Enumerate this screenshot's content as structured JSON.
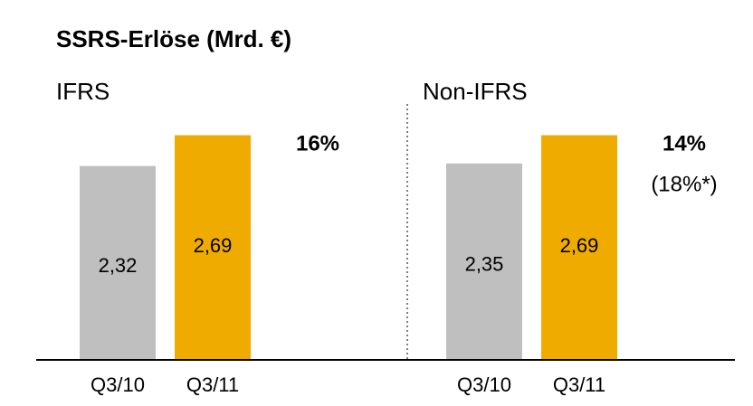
{
  "title": "SSRS-Erlöse (Mrd. €)",
  "chart_data": [
    {
      "type": "bar",
      "subtitle": "IFRS",
      "categories": [
        "Q3/10",
        "Q3/11"
      ],
      "values": [
        2.32,
        2.69
      ],
      "value_labels": [
        "2,32",
        "2,69"
      ],
      "colors": [
        "#bfbfbf",
        "#f0ab00"
      ],
      "ylim": [
        0,
        3
      ],
      "annotations": [
        "16%"
      ]
    },
    {
      "type": "bar",
      "subtitle": "Non-IFRS",
      "categories": [
        "Q3/10",
        "Q3/11"
      ],
      "values": [
        2.35,
        2.69
      ],
      "value_labels": [
        "2,35",
        "2,69"
      ],
      "colors": [
        "#bfbfbf",
        "#f0ab00"
      ],
      "ylim": [
        0,
        3
      ],
      "annotations": [
        "14%",
        "(18%*)"
      ]
    }
  ]
}
